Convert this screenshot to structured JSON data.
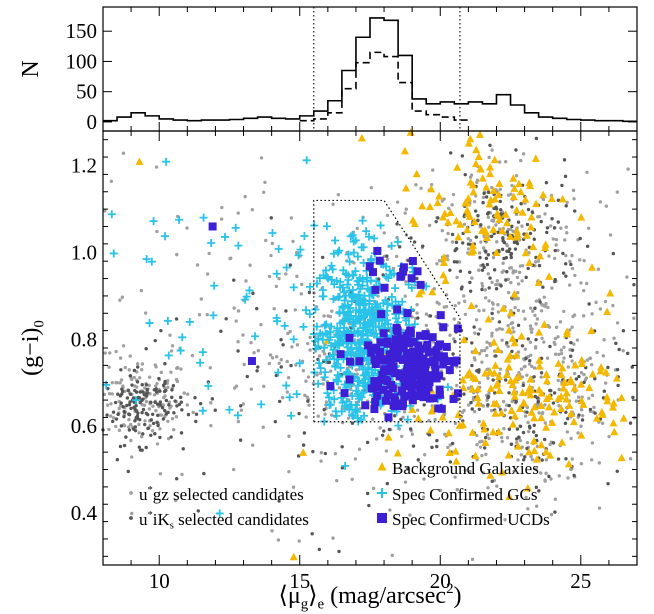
{
  "chart_data": [
    {
      "panel": "top-histogram",
      "type": "histogram-step",
      "ylabel": "N",
      "x_range": [
        8,
        27
      ],
      "ylim": [
        -15,
        190
      ],
      "yticks": [
        0,
        50,
        100,
        150
      ],
      "reference_lines_x": [
        15.5,
        20.7
      ],
      "series": [
        {
          "style": "solid",
          "bins": [
            8.0,
            8.5,
            9.0,
            9.5,
            10.0,
            10.5,
            11.0,
            11.5,
            12.0,
            12.5,
            13.0,
            13.5,
            14.0,
            14.5,
            15.0,
            15.5,
            16.0,
            16.5,
            17.0,
            17.5,
            18.0,
            18.5,
            19.0,
            19.5,
            20.0,
            20.5,
            21.0,
            21.5,
            22.0,
            22.5,
            23.0,
            23.5,
            24.0,
            24.5,
            25.0,
            25.5,
            26.0,
            26.5,
            27.0
          ],
          "counts": [
            2,
            8,
            15,
            10,
            5,
            3,
            2,
            3,
            3,
            4,
            6,
            8,
            6,
            5,
            10,
            18,
            35,
            85,
            140,
            172,
            168,
            110,
            38,
            30,
            33,
            30,
            33,
            30,
            45,
            28,
            15,
            8,
            6,
            4,
            3,
            2,
            2,
            1
          ]
        },
        {
          "style": "dashed",
          "bins": [
            15.0,
            15.5,
            16.0,
            16.5,
            17.0,
            17.5,
            18.0,
            18.5,
            19.0,
            19.5,
            20.0,
            20.5,
            21.0
          ],
          "counts": [
            2,
            5,
            15,
            55,
            98,
            115,
            108,
            65,
            18,
            12,
            8,
            3
          ]
        }
      ]
    },
    {
      "panel": "main-scatter",
      "type": "scatter",
      "xlabel_parts": [
        "⟨μ",
        "g",
        "⟩",
        "e",
        " (mag/arcsec",
        "2",
        ")"
      ],
      "ylabel_parts": [
        "(g−i)",
        "0"
      ],
      "xlim": [
        8,
        27
      ],
      "ylim": [
        0.28,
        1.28
      ],
      "xticks": [
        10,
        15,
        20,
        25
      ],
      "yticks": [
        0.4,
        0.6,
        0.8,
        1.0,
        1.2
      ],
      "ytick_labels": [
        "0.4",
        "0.6",
        "0.8",
        "1.0",
        "1.2"
      ],
      "selection_region": [
        [
          15.5,
          0.61
        ],
        [
          15.5,
          1.12
        ],
        [
          18.0,
          1.12
        ],
        [
          19.0,
          1.02
        ],
        [
          20.7,
          0.85
        ],
        [
          20.7,
          0.61
        ]
      ],
      "legend": [
        {
          "key": "ugz",
          "label_parts": [
            "u",
            "*",
            "gz selected candidates"
          ],
          "marker": "dot",
          "color": "#a0a0a0"
        },
        {
          "key": "uik",
          "label_parts": [
            "u",
            "*",
            "iK",
            "s",
            " selected candidates"
          ],
          "marker": "dot",
          "color": "#555555"
        },
        {
          "key": "bg",
          "label_parts": [
            "Background Galaxies"
          ],
          "marker": "triangle",
          "color": "#f5b800"
        },
        {
          "key": "gc",
          "label_parts": [
            "Spec Confirmed GCs"
          ],
          "marker": "plus",
          "color": "#29c3ea"
        },
        {
          "key": "ucd",
          "label_parts": [
            "Spec Confirmed UCDs"
          ],
          "marker": "square",
          "color": "#3d1fd6"
        }
      ],
      "series": [
        {
          "key": "ugz",
          "name": "u*gz selected candidates",
          "approx_count": 1100,
          "clusters": [
            {
              "cx": 9.3,
              "cy": 0.66,
              "sx": 0.9,
              "sy": 0.05,
              "n": 140
            },
            {
              "cx": 17.0,
              "cy": 0.75,
              "sx": 1.2,
              "sy": 0.1,
              "n": 120
            },
            {
              "cx": 23.0,
              "cy": 0.7,
              "sx": 1.8,
              "sy": 0.12,
              "n": 320
            },
            {
              "cx": 22.0,
              "cy": 1.03,
              "sx": 1.7,
              "sy": 0.11,
              "n": 160
            },
            {
              "cx": 17.5,
              "cy": 0.78,
              "sx": 5.5,
              "sy": 0.2,
              "n": 360
            }
          ]
        },
        {
          "key": "uik",
          "name": "u*iKs selected candidates",
          "approx_count": 600,
          "clusters": [
            {
              "cx": 9.4,
              "cy": 0.64,
              "sx": 0.7,
              "sy": 0.04,
              "n": 130
            },
            {
              "cx": 22.3,
              "cy": 1.03,
              "sx": 1.3,
              "sy": 0.08,
              "n": 150
            },
            {
              "cx": 23.3,
              "cy": 0.66,
              "sx": 1.6,
              "sy": 0.09,
              "n": 110
            },
            {
              "cx": 18.0,
              "cy": 0.72,
              "sx": 4.5,
              "sy": 0.17,
              "n": 210
            }
          ]
        },
        {
          "key": "bg",
          "name": "Background Galaxies",
          "approx_count": 290,
          "clusters": [
            {
              "cx": 21.8,
              "cy": 1.1,
              "sx": 1.5,
              "sy": 0.09,
              "n": 95
            },
            {
              "cx": 23.5,
              "cy": 0.68,
              "sx": 1.7,
              "sy": 0.09,
              "n": 140
            },
            {
              "cx": 20.0,
              "cy": 0.68,
              "sx": 1.0,
              "sy": 0.06,
              "n": 30
            },
            {
              "cx": 19.0,
              "cy": 0.9,
              "sx": 4.0,
              "sy": 0.2,
              "n": 25
            }
          ]
        },
        {
          "key": "gc",
          "name": "Spec Confirmed GCs",
          "approx_count": 600,
          "clusters": [
            {
              "cx": 17.3,
              "cy": 0.8,
              "sx": 0.9,
              "sy": 0.11,
              "n": 520
            },
            {
              "cx": 13.0,
              "cy": 0.84,
              "sx": 2.5,
              "sy": 0.15,
              "n": 60
            }
          ]
        },
        {
          "key": "ucd",
          "name": "Spec Confirmed UCDs",
          "approx_count": 210,
          "clusters": [
            {
              "cx": 18.9,
              "cy": 0.74,
              "sx": 0.9,
              "sy": 0.05,
              "n": 195
            },
            {
              "cx": 18.5,
              "cy": 0.95,
              "sx": 0.8,
              "sy": 0.07,
              "n": 15
            }
          ],
          "extra_points": [
            [
              11.9,
              1.06
            ],
            [
              13.3,
              0.75
            ]
          ]
        }
      ]
    }
  ]
}
